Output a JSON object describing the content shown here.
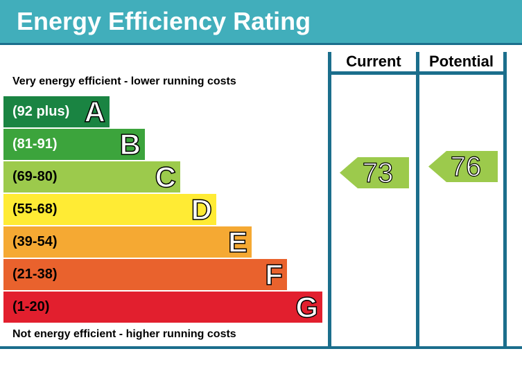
{
  "header": {
    "title": "Energy Efficiency Rating"
  },
  "columns": {
    "current": "Current",
    "potential": "Potential"
  },
  "captions": {
    "top": "Very energy efficient - lower running costs",
    "bottom": "Not energy efficient - higher running costs"
  },
  "chart_data": {
    "type": "bar",
    "title": "Energy Efficiency Rating",
    "bands": [
      {
        "letter": "A",
        "range": "(92 plus)",
        "color": "#1a8442",
        "text_color": "#ffffff"
      },
      {
        "letter": "B",
        "range": "(81-91)",
        "color": "#3ca43c",
        "text_color": "#ffffff"
      },
      {
        "letter": "C",
        "range": "(69-80)",
        "color": "#9cca4c",
        "text_color": "#000000"
      },
      {
        "letter": "D",
        "range": "(55-68)",
        "color": "#ffeb34",
        "text_color": "#000000"
      },
      {
        "letter": "E",
        "range": "(39-54)",
        "color": "#f5a933",
        "text_color": "#000000"
      },
      {
        "letter": "F",
        "range": "(21-38)",
        "color": "#e9622d",
        "text_color": "#000000"
      },
      {
        "letter": "G",
        "range": "(1-20)",
        "color": "#e21f2e",
        "text_color": "#000000"
      }
    ],
    "current": {
      "value": 73,
      "label": "73",
      "band": "C",
      "color": "#9cca4c"
    },
    "potential": {
      "value": 76,
      "label": "76",
      "band": "C",
      "color": "#9cca4c"
    }
  }
}
